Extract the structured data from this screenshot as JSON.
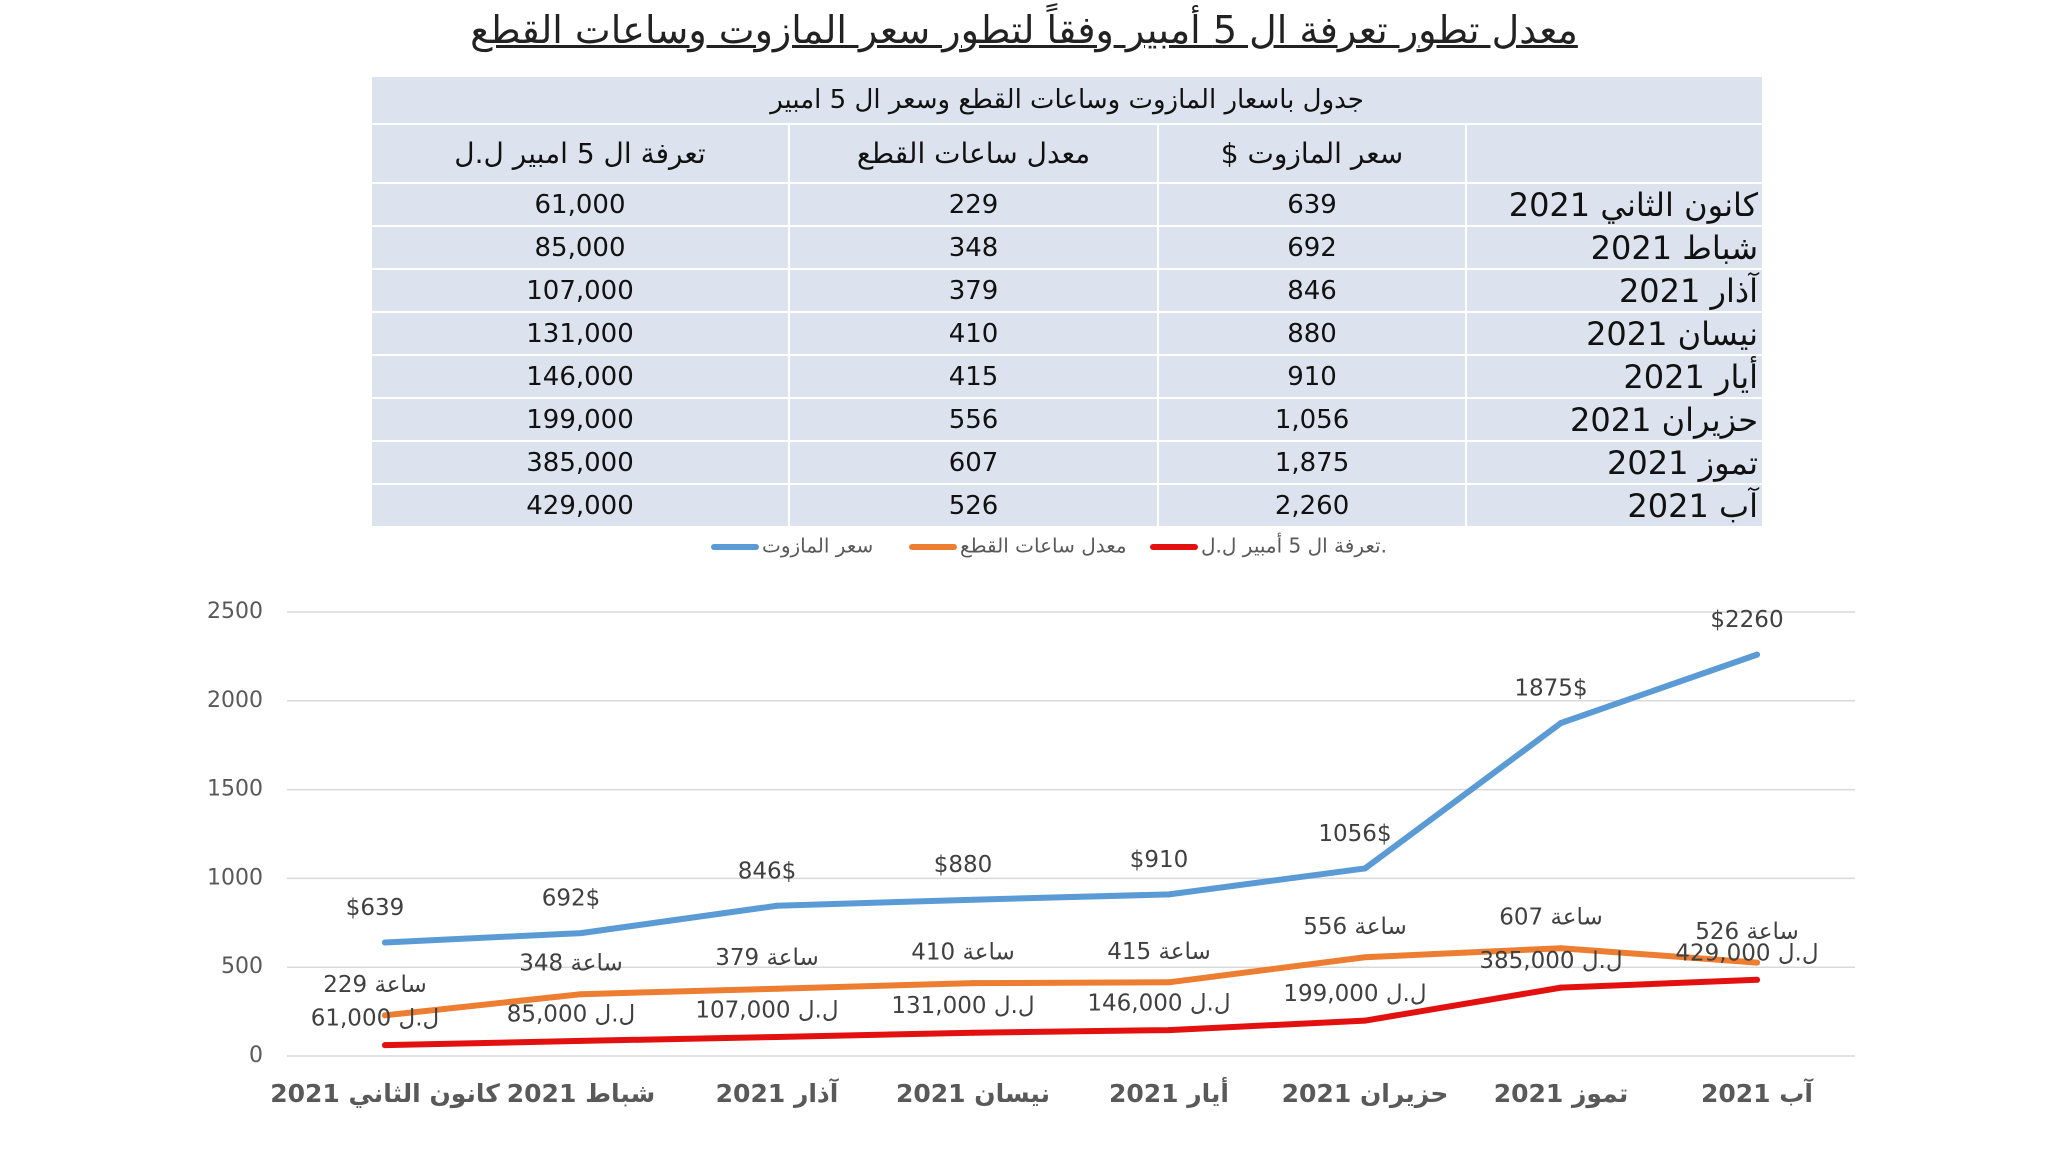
{
  "title": "معدل تطور تعرفة ال 5 أمبير وفقاً لتطور سعر المازوت وساعات القطع",
  "table": {
    "caption": "جدول باسعار المازوت وساعات القطع وسعر ال 5 امبير",
    "headers": [
      "سعر المازوت $",
      "معدل ساعات القطع",
      "تعرفة ال 5 امبير ل.ل"
    ],
    "rows": [
      [
        "كانون الثاني 2021",
        "639",
        "229",
        "61,000"
      ],
      [
        "شباط 2021",
        "692",
        "348",
        "85,000"
      ],
      [
        "آذار 2021",
        "846",
        "379",
        "107,000"
      ],
      [
        "نيسان 2021",
        "880",
        "410",
        "131,000"
      ],
      [
        "أيار 2021",
        "910",
        "415",
        "146,000"
      ],
      [
        "حزيران 2021",
        "1,056",
        "556",
        "199,000"
      ],
      [
        "تموز 2021",
        "1,875",
        "607",
        "385,000"
      ],
      [
        "آب 2021",
        "2,260",
        "526",
        "429,000"
      ]
    ]
  },
  "chart_data": {
    "type": "line",
    "categories": [
      "كانون الثاني 2021",
      "شباط 2021",
      "آذار 2021",
      "نيسان 2021",
      "أيار 2021",
      "حزيران 2021",
      "تموز 2021",
      "آب 2021"
    ],
    "series": [
      {
        "name": "سعر المازوت",
        "color": "#5b9bd5",
        "values": [
          639,
          692,
          846,
          880,
          910,
          1056,
          1875,
          2260
        ],
        "value_labels": [
          "$639",
          "692$",
          "846$",
          "$880",
          "$910",
          "1056$",
          "1875$",
          "$2260"
        ]
      },
      {
        "name": "معدل ساعات القطع",
        "color": "#ed7d31",
        "values": [
          229,
          348,
          379,
          410,
          415,
          556,
          607,
          526
        ],
        "value_labels": [
          "229 ساعة",
          "348 ساعة",
          "379 ساعة",
          "410 ساعة",
          "415 ساعة",
          "556 ساعة",
          "607 ساعة",
          "526 ساعة"
        ]
      },
      {
        "name": "تعرفة ال 5 أمبير ل.ل.",
        "color": "#e31010",
        "values": [
          61,
          85,
          107,
          131,
          146,
          199,
          385,
          429
        ],
        "value_labels": [
          "ل.ل 61,000",
          "ل.ل 85,000",
          "ل.ل 107,000",
          "ل.ل 131,000",
          "ل.ل 146,000",
          "ل.ل 199,000",
          "ل.ل 385,000",
          "ل.ل 429,000"
        ]
      }
    ],
    "ylim": [
      0,
      2500
    ],
    "yticks": [
      0,
      500,
      1000,
      1500,
      2000,
      2500
    ],
    "grid": true,
    "legend": "top"
  }
}
